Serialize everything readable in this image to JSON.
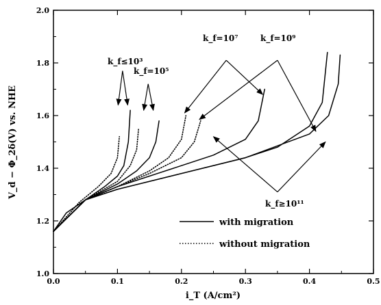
{
  "chart_data": {
    "type": "line",
    "xlabel": "i_T (A/cm²)",
    "ylabel": "V_d − Φ_2δ(V) vs. NHE",
    "xlim": [
      0.0,
      0.5
    ],
    "ylim": [
      1.0,
      2.0
    ],
    "xticks": [
      "0.0",
      "0.1",
      "0.2",
      "0.3",
      "0.4",
      "0.5"
    ],
    "yticks": [
      "1.0",
      "1.2",
      "1.4",
      "1.6",
      "1.8",
      "2.0"
    ],
    "legend": [
      {
        "label": "with migration",
        "style": "solid"
      },
      {
        "label": "without migration",
        "style": "dotted"
      }
    ],
    "annotations": [
      {
        "text": "k_f≤10³"
      },
      {
        "text": "k_f=10⁵"
      },
      {
        "text": "k_f=10⁷"
      },
      {
        "text": "k_f=10⁹"
      },
      {
        "text": "k_f≥10¹¹"
      }
    ],
    "series": [
      {
        "style": "solid",
        "x": [
          0.0,
          0.02,
          0.05,
          0.08,
          0.1,
          0.11,
          0.117,
          0.12
        ],
        "y": [
          1.16,
          1.23,
          1.28,
          1.33,
          1.37,
          1.41,
          1.5,
          1.62
        ]
      },
      {
        "style": "solid",
        "x": [
          0.0,
          0.05,
          0.1,
          0.13,
          0.15,
          0.16,
          0.165
        ],
        "y": [
          1.16,
          1.28,
          1.34,
          1.39,
          1.44,
          1.5,
          1.58
        ]
      },
      {
        "style": "solid",
        "x": [
          0.0,
          0.05,
          0.1,
          0.15,
          0.2,
          0.25,
          0.3,
          0.32,
          0.33
        ],
        "y": [
          1.16,
          1.28,
          1.33,
          1.37,
          1.41,
          1.45,
          1.51,
          1.58,
          1.7
        ]
      },
      {
        "style": "solid",
        "x": [
          0.0,
          0.05,
          0.1,
          0.2,
          0.3,
          0.35,
          0.4,
          0.42,
          0.428
        ],
        "y": [
          1.16,
          1.28,
          1.32,
          1.38,
          1.44,
          1.48,
          1.56,
          1.65,
          1.84
        ]
      },
      {
        "style": "solid",
        "x": [
          0.0,
          0.05,
          0.1,
          0.2,
          0.3,
          0.4,
          0.43,
          0.445,
          0.448
        ],
        "y": [
          1.16,
          1.28,
          1.32,
          1.38,
          1.44,
          1.53,
          1.6,
          1.72,
          1.83
        ]
      },
      {
        "style": "dotted",
        "x": [
          0.0,
          0.04,
          0.07,
          0.09,
          0.1,
          0.103
        ],
        "y": [
          1.16,
          1.27,
          1.33,
          1.38,
          1.44,
          1.52
        ]
      },
      {
        "style": "dotted",
        "x": [
          0.0,
          0.05,
          0.1,
          0.12,
          0.13,
          0.133
        ],
        "y": [
          1.16,
          1.28,
          1.35,
          1.41,
          1.47,
          1.55
        ]
      },
      {
        "style": "dotted",
        "x": [
          0.0,
          0.05,
          0.1,
          0.15,
          0.18,
          0.2,
          0.207
        ],
        "y": [
          1.16,
          1.28,
          1.33,
          1.39,
          1.44,
          1.51,
          1.6
        ]
      },
      {
        "style": "dotted",
        "x": [
          0.0,
          0.05,
          0.1,
          0.15,
          0.2,
          0.22,
          0.23
        ],
        "y": [
          1.16,
          1.28,
          1.33,
          1.38,
          1.44,
          1.5,
          1.58
        ]
      }
    ],
    "arrows": [
      {
        "from": [
          0.108,
          1.77
        ],
        "to": [
          0.101,
          1.64
        ]
      },
      {
        "from": [
          0.108,
          1.77
        ],
        "to": [
          0.116,
          1.64
        ]
      },
      {
        "from": [
          0.148,
          1.72
        ],
        "to": [
          0.141,
          1.62
        ]
      },
      {
        "from": [
          0.148,
          1.72
        ],
        "to": [
          0.156,
          1.62
        ]
      },
      {
        "from": [
          0.27,
          1.81
        ],
        "to": [
          0.205,
          1.61
        ]
      },
      {
        "from": [
          0.27,
          1.81
        ],
        "to": [
          0.327,
          1.68
        ]
      },
      {
        "from": [
          0.35,
          1.81
        ],
        "to": [
          0.228,
          1.585
        ]
      },
      {
        "from": [
          0.35,
          1.81
        ],
        "to": [
          0.41,
          1.54
        ]
      },
      {
        "from": [
          0.35,
          1.31
        ],
        "to": [
          0.25,
          1.52
        ]
      },
      {
        "from": [
          0.35,
          1.31
        ],
        "to": [
          0.425,
          1.5
        ]
      }
    ]
  }
}
